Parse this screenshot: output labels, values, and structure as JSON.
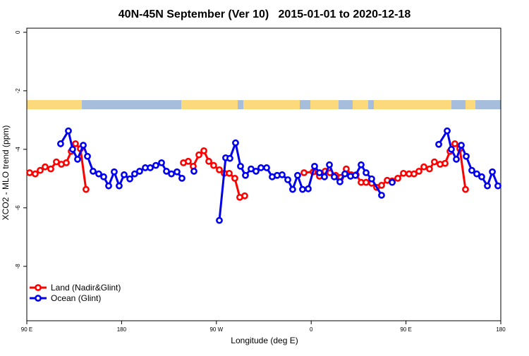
{
  "chart_data": {
    "type": "line",
    "title": "40N-45N September (Ver 10)   2015-01-01 to 2020-12-18",
    "x_label": "Longitude (deg E)",
    "y_label": "XCO2 - MLO trend (ppm)",
    "xlim": [
      90,
      540
    ],
    "ylim": [
      -9.86,
      0.14
    ],
    "xticks": [
      {
        "value": 90,
        "label": "90 E"
      },
      180,
      {
        "value": 270,
        "label": "90 W"
      },
      {
        "value": 360,
        "label": "0"
      },
      {
        "value": 450,
        "label": "90 E"
      },
      {
        "value": 540,
        "label": "180"
      }
    ],
    "yticks": [
      0,
      -2,
      -4,
      -6,
      -8
    ],
    "legend_position": "bottom-left",
    "series": [
      {
        "name": "Land (Nadir&Glint)",
        "color": "#ff0000",
        "x": [
          92.7,
          98.0,
          102.7,
          107.4,
          112.8,
          118.1,
          122.8,
          127.5,
          132.2,
          136.2,
          140.9,
          146.2,
          null,
          238.7,
          243.3,
          248.0,
          253.4,
          258.1,
          262.8,
          267.4,
          272.8,
          277.5,
          282.2,
          287.5,
          292.2,
          296.9,
          null,
          353.2,
          361.9,
          367.9,
          373.2,
          377.9,
          383.3,
          388.0,
          393.3,
          398.0,
          402.7,
          407.4,
          412.1,
          417.4,
          422.1,
          426.8,
          432.2,
          436.9,
          442.2,
          447.6,
          452.9,
          457.6,
          462.3,
          467.0,
          472.3,
          477.0,
          482.4,
          487.1,
          491.8,
          496.4,
          501.1,
          506.5
        ],
        "values": [
          -4.8,
          -4.84,
          -4.72,
          -4.6,
          -4.67,
          -4.43,
          -4.51,
          -4.46,
          -4.07,
          -3.81,
          -3.98,
          -5.37,
          null,
          -4.46,
          -4.41,
          -4.58,
          -4.19,
          -4.05,
          -4.41,
          -4.55,
          -4.7,
          -4.82,
          -4.82,
          -4.99,
          -5.64,
          -5.59,
          null,
          -4.8,
          -4.77,
          -4.92,
          -4.75,
          -4.8,
          -4.89,
          -4.96,
          -4.67,
          -4.87,
          -4.87,
          -5.13,
          -5.13,
          -5.16,
          -5.3,
          -5.23,
          -5.06,
          -5.08,
          -4.99,
          -4.82,
          -4.84,
          -4.84,
          -4.75,
          -4.6,
          -4.67,
          -4.43,
          -4.51,
          -4.48,
          -4.07,
          -3.81,
          -3.98,
          -5.37
        ]
      },
      {
        "name": "Ocean (Glint)",
        "color": "#0000ee",
        "x": [
          122.1,
          129.5,
          133.5,
          138.2,
          143.6,
          147.6,
          152.9,
          158.3,
          163.0,
          167.7,
          173.0,
          177.7,
          182.4,
          187.8,
          192.4,
          197.1,
          202.5,
          207.2,
          212.5,
          217.9,
          222.6,
          227.3,
          232.6,
          237.3,
          null,
          248.7,
          null,
          272.8,
          278.8,
          282.8,
          288.2,
          292.9,
          297.6,
          302.9,
          307.6,
          312.3,
          317.7,
          323.0,
          327.7,
          332.4,
          337.8,
          342.4,
          347.1,
          351.8,
          357.2,
          363.2,
          367.9,
          372.6,
          377.3,
          381.9,
          387.3,
          392.0,
          397.3,
          402.0,
          407.4,
          412.1,
          417.4,
          426.8,
          null,
          436.9,
          null,
          481.1,
          489.1,
          493.1,
          497.8,
          502.5,
          507.2,
          512.5,
          517.2,
          521.9,
          527.3,
          532.0,
          537.3
        ],
        "values": [
          -3.81,
          -3.37,
          -4.0,
          -4.34,
          -3.86,
          -4.24,
          -4.75,
          -4.84,
          -4.94,
          -5.25,
          -4.77,
          -5.25,
          -4.87,
          -5.01,
          -4.84,
          -4.75,
          -4.63,
          -4.63,
          -4.55,
          -4.46,
          -4.75,
          -4.84,
          -4.77,
          -4.99,
          null,
          -4.75,
          null,
          -6.43,
          -4.29,
          -4.31,
          -3.78,
          -4.58,
          -4.89,
          -4.67,
          -4.75,
          -4.63,
          -4.63,
          -4.94,
          -4.89,
          -4.87,
          -5.04,
          -5.37,
          -4.89,
          -5.37,
          -5.35,
          -4.58,
          -4.8,
          -4.94,
          -4.53,
          -4.94,
          -5.11,
          -4.84,
          -4.92,
          -4.89,
          -4.53,
          -4.8,
          -5.01,
          -5.57,
          null,
          -5.13,
          null,
          -3.83,
          -3.37,
          -4.0,
          -4.34,
          -3.86,
          -4.24,
          -4.72,
          -4.84,
          -4.94,
          -5.25,
          -4.77,
          -5.25
        ]
      }
    ]
  }
}
